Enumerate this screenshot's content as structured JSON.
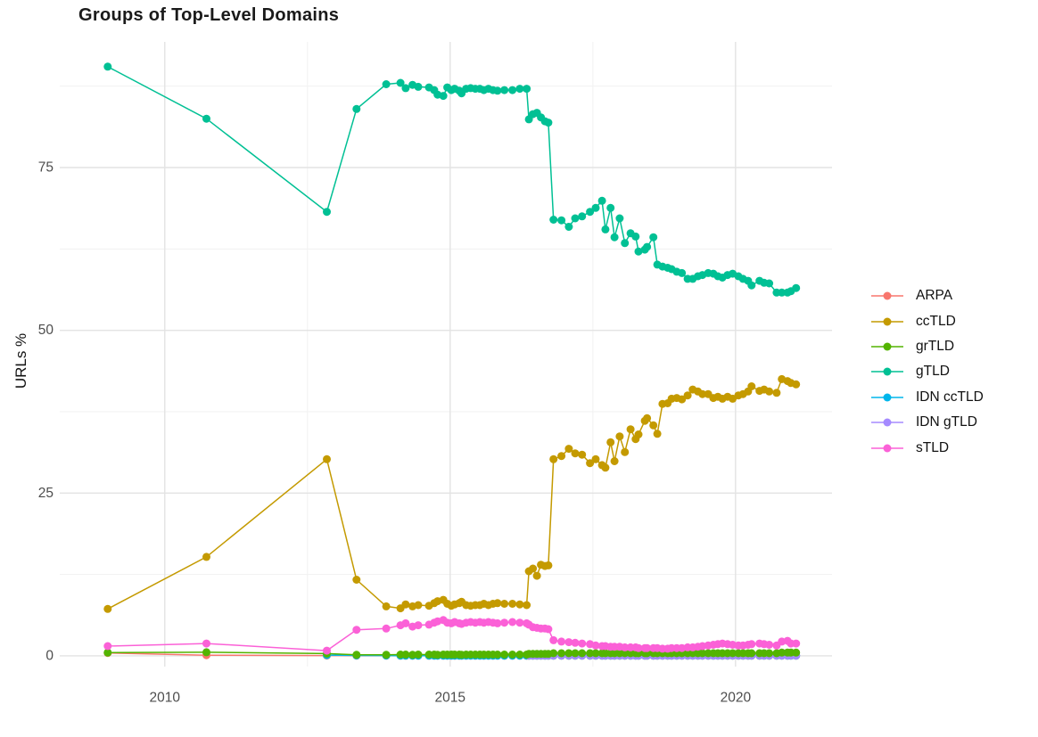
{
  "chart_data": {
    "type": "line",
    "title": "Groups of Top-Level Domains",
    "xlabel": "",
    "ylabel": "URLs %",
    "grid": "on",
    "legend_position": "right",
    "x_ticks": [
      2010,
      2015,
      2020
    ],
    "y_ticks": [
      0,
      25,
      50,
      75
    ],
    "x_minor": [
      2012.5,
      2017.5
    ],
    "y_minor": [
      12.5,
      37.5,
      62.5,
      87.5
    ],
    "xlim": [
      2008.16,
      2021.69
    ],
    "ylim": [
      -1.65,
      94.3
    ],
    "legend_items": [
      {
        "label": "ARPA",
        "color": "#F8766D"
      },
      {
        "label": "ccTLD",
        "color": "#C49A00"
      },
      {
        "label": "grTLD",
        "color": "#53B400"
      },
      {
        "label": "gTLD",
        "color": "#00C094"
      },
      {
        "label": "IDN ccTLD",
        "color": "#00B6EB"
      },
      {
        "label": "IDN gTLD",
        "color": "#A58AFF"
      },
      {
        "label": "sTLD",
        "color": "#FB61D7"
      }
    ],
    "draw_order": [
      "ARPA",
      "IDN ccTLD",
      "IDN gTLD",
      "grTLD",
      "ccTLD",
      "gTLD",
      "sTLD"
    ],
    "x_dense": [
      2014.13,
      2014.22,
      2014.34,
      2014.44,
      2014.63,
      2014.72,
      2014.78,
      2014.88,
      2014.95,
      2015.02,
      2015.08,
      2015.16,
      2015.2,
      2015.28,
      2015.36,
      2015.44,
      2015.52,
      2015.59,
      2015.67,
      2015.75,
      2015.83,
      2015.95,
      2016.09,
      2016.22,
      2016.34,
      2016.38,
      2016.45,
      2016.52,
      2016.59,
      2016.66,
      2016.72,
      2016.81,
      2016.95,
      2017.08,
      2017.19,
      2017.31,
      2017.45,
      2017.55,
      2017.66,
      2017.72,
      2017.81,
      2017.88,
      2017.97,
      2018.06,
      2018.16,
      2018.25,
      2018.3,
      2018.41,
      2018.45,
      2018.56,
      2018.63,
      2018.72,
      2018.81,
      2018.88,
      2018.97,
      2019.06,
      2019.16,
      2019.25,
      2019.34,
      2019.42,
      2019.52,
      2019.61,
      2019.69,
      2019.77,
      2019.86,
      2019.95,
      2020.05,
      2020.13,
      2020.22,
      2020.28,
      2020.42,
      2020.5,
      2020.59,
      2020.72,
      2020.81,
      2020.91,
      2020.97,
      2021.06
    ],
    "series": [
      {
        "name": "gTLD",
        "color": "#00C094",
        "sparse": [
          [
            2009.0,
            90.5
          ],
          [
            2010.73,
            82.5
          ],
          [
            2012.84,
            68.2
          ],
          [
            2013.36,
            84.0
          ],
          [
            2013.88,
            87.8
          ]
        ],
        "dense_y": [
          88.0,
          87.2,
          87.7,
          87.4,
          87.3,
          86.9,
          86.2,
          86.0,
          87.3,
          86.9,
          87.1,
          86.8,
          86.4,
          87.1,
          87.2,
          87.1,
          87.1,
          86.9,
          87.1,
          86.9,
          86.8,
          86.9,
          86.9,
          87.1,
          87.1,
          82.4,
          83.2,
          83.4,
          82.7,
          82.1,
          81.9,
          67.0,
          66.9,
          65.9,
          67.2,
          67.5,
          68.2,
          68.8,
          69.9,
          65.5,
          68.8,
          64.3,
          67.2,
          63.4,
          64.9,
          64.4,
          62.1,
          62.4,
          62.8,
          64.3,
          60.1,
          59.8,
          59.6,
          59.4,
          59.0,
          58.8,
          57.9,
          57.9,
          58.3,
          58.5,
          58.8,
          58.7,
          58.3,
          58.1,
          58.5,
          58.7,
          58.3,
          57.9,
          57.6,
          56.9,
          57.6,
          57.3,
          57.2,
          55.8,
          55.8,
          55.8,
          56.0,
          56.5
        ]
      },
      {
        "name": "ccTLD",
        "color": "#C49A00",
        "sparse": [
          [
            2009.0,
            7.2
          ],
          [
            2010.73,
            15.2
          ],
          [
            2012.84,
            30.2
          ],
          [
            2013.36,
            11.7
          ],
          [
            2013.88,
            7.6
          ]
        ],
        "dense_y": [
          7.3,
          7.9,
          7.6,
          7.8,
          7.7,
          8.1,
          8.4,
          8.6,
          8.0,
          7.7,
          7.9,
          8.1,
          8.3,
          7.8,
          7.7,
          7.8,
          7.8,
          8.0,
          7.8,
          8.0,
          8.1,
          8.0,
          8.0,
          7.9,
          7.8,
          13.0,
          13.4,
          12.3,
          14.0,
          13.8,
          13.9,
          30.2,
          30.7,
          31.8,
          31.1,
          30.9,
          29.6,
          30.2,
          29.3,
          28.9,
          32.8,
          29.9,
          33.7,
          31.3,
          34.8,
          33.3,
          34.0,
          36.1,
          36.5,
          35.4,
          34.1,
          38.7,
          38.8,
          39.5,
          39.6,
          39.4,
          40.0,
          40.9,
          40.6,
          40.2,
          40.2,
          39.6,
          39.8,
          39.5,
          39.8,
          39.5,
          40.0,
          40.2,
          40.6,
          41.4,
          40.7,
          40.9,
          40.6,
          40.4,
          42.5,
          42.2,
          41.9,
          41.7
        ]
      },
      {
        "name": "sTLD",
        "color": "#FB61D7",
        "sparse": [
          [
            2009.0,
            1.5
          ],
          [
            2010.73,
            1.9
          ],
          [
            2012.84,
            0.8
          ],
          [
            2013.36,
            4.0
          ],
          [
            2013.88,
            4.2
          ]
        ],
        "dense_y": [
          4.7,
          5.0,
          4.5,
          4.7,
          4.8,
          5.1,
          5.3,
          5.5,
          5.1,
          5.0,
          5.2,
          5.0,
          4.9,
          5.1,
          5.2,
          5.1,
          5.2,
          5.1,
          5.2,
          5.1,
          5.0,
          5.1,
          5.2,
          5.1,
          5.0,
          4.8,
          4.4,
          4.3,
          4.2,
          4.2,
          4.1,
          2.4,
          2.2,
          2.1,
          2.0,
          1.9,
          1.8,
          1.6,
          1.5,
          1.5,
          1.4,
          1.4,
          1.4,
          1.3,
          1.3,
          1.3,
          1.2,
          1.2,
          1.2,
          1.2,
          1.2,
          1.1,
          1.1,
          1.2,
          1.2,
          1.2,
          1.3,
          1.3,
          1.4,
          1.5,
          1.6,
          1.7,
          1.8,
          1.9,
          1.8,
          1.7,
          1.6,
          1.6,
          1.7,
          1.8,
          1.9,
          1.8,
          1.7,
          1.6,
          2.2,
          2.3,
          1.9,
          1.9
        ]
      },
      {
        "name": "grTLD",
        "color": "#53B400",
        "sparse": [
          [
            2009.0,
            0.5
          ],
          [
            2010.73,
            0.55
          ],
          [
            2012.84,
            0.35
          ],
          [
            2013.36,
            0.15
          ],
          [
            2013.88,
            0.15
          ]
        ],
        "dense_y": [
          0.2,
          0.2,
          0.15,
          0.2,
          0.2,
          0.2,
          0.15,
          0.2,
          0.2,
          0.2,
          0.2,
          0.2,
          0.15,
          0.2,
          0.2,
          0.2,
          0.2,
          0.2,
          0.2,
          0.2,
          0.2,
          0.2,
          0.2,
          0.2,
          0.2,
          0.3,
          0.3,
          0.3,
          0.3,
          0.3,
          0.3,
          0.4,
          0.4,
          0.4,
          0.4,
          0.4,
          0.4,
          0.4,
          0.4,
          0.4,
          0.4,
          0.4,
          0.4,
          0.4,
          0.4,
          0.4,
          0.4,
          0.4,
          0.4,
          0.4,
          0.4,
          0.4,
          0.4,
          0.4,
          0.4,
          0.4,
          0.4,
          0.4,
          0.4,
          0.4,
          0.4,
          0.4,
          0.4,
          0.4,
          0.4,
          0.4,
          0.4,
          0.4,
          0.4,
          0.4,
          0.4,
          0.4,
          0.4,
          0.4,
          0.5,
          0.5,
          0.5,
          0.5
        ]
      },
      {
        "name": "ARPA",
        "color": "#F8766D",
        "sparse": [
          [
            2009.0,
            0.45
          ],
          [
            2010.73,
            0.1
          ],
          [
            2012.84,
            0.05
          ],
          [
            2013.36,
            0.03
          ],
          [
            2013.88,
            0.03
          ]
        ],
        "dense_fill": 0.02
      },
      {
        "name": "IDN ccTLD",
        "color": "#00B6EB",
        "sparse": [
          [
            2012.84,
            0.12
          ],
          [
            2013.36,
            0.06
          ],
          [
            2013.88,
            0.05
          ]
        ],
        "dense_fill": 0.04
      },
      {
        "name": "IDN gTLD",
        "color": "#A58AFF",
        "sparse": [],
        "dense_fill": 0.05,
        "dense_from": 2016.38
      }
    ]
  }
}
